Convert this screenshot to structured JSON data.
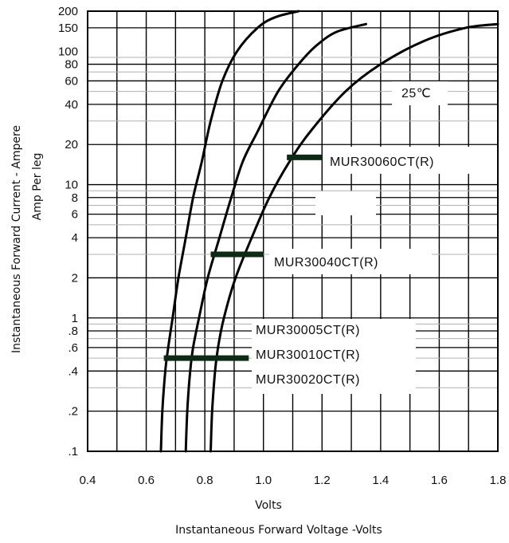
{
  "chart_data": {
    "type": "line",
    "scale": {
      "x": "linear",
      "y": "log"
    },
    "xlim": [
      0.4,
      1.8
    ],
    "ylim": [
      0.1,
      200
    ],
    "grid": true,
    "x_ticks": [
      "0.4",
      "0.6",
      "0.8",
      "1.0",
      "1.2",
      "1.4",
      "1.6",
      "1.8"
    ],
    "y_ticks": [
      {
        "value": 200,
        "label": "200"
      },
      {
        "value": 150,
        "label": "150"
      },
      {
        "value": 100,
        "label": "100"
      },
      {
        "value": 80,
        "label": "80"
      },
      {
        "value": 60,
        "label": "60"
      },
      {
        "value": 40,
        "label": "40"
      },
      {
        "value": 20,
        "label": "20"
      },
      {
        "value": 10,
        "label": "10"
      },
      {
        "value": 8,
        "label": "8"
      },
      {
        "value": 6,
        "label": "6"
      },
      {
        "value": 4,
        "label": "4"
      },
      {
        "value": 2,
        "label": "2"
      },
      {
        "value": 1,
        "label": "1"
      },
      {
        "value": 0.8,
        "label": ".8"
      },
      {
        "value": 0.6,
        "label": ".6"
      },
      {
        "value": 0.4,
        "label": ".4"
      },
      {
        "value": 0.2,
        "label": ".2"
      },
      {
        "value": 0.1,
        "label": ".1"
      }
    ],
    "xlabel_line1": "Volts",
    "xlabel_line2": "Instantaneous Forward Voltage -Volts",
    "ylabel_line1": "Instantaneous Forward Current - Ampere",
    "ylabel_line2": "Amp Per leg",
    "temperature_label": "25℃",
    "series": [
      {
        "label": "MUR30005CT(R) MUR30010CT(R) MUR30020CT(R)",
        "points": [
          [
            0.65,
            0.1
          ],
          [
            0.655,
            0.2
          ],
          [
            0.665,
            0.4
          ],
          [
            0.675,
            0.6
          ],
          [
            0.69,
            1
          ],
          [
            0.71,
            2
          ],
          [
            0.735,
            4
          ],
          [
            0.76,
            8
          ],
          [
            0.79,
            15
          ],
          [
            0.82,
            30
          ],
          [
            0.86,
            60
          ],
          [
            0.91,
            100
          ],
          [
            0.98,
            150
          ],
          [
            1.04,
            180
          ],
          [
            1.12,
            200
          ]
        ]
      },
      {
        "label": "MUR30040CT(R)",
        "points": [
          [
            0.735,
            0.1
          ],
          [
            0.74,
            0.2
          ],
          [
            0.75,
            0.4
          ],
          [
            0.76,
            0.6
          ],
          [
            0.78,
            1
          ],
          [
            0.81,
            2
          ],
          [
            0.85,
            4
          ],
          [
            0.89,
            8
          ],
          [
            0.93,
            15
          ],
          [
            0.98,
            25
          ],
          [
            1.05,
            50
          ],
          [
            1.12,
            80
          ],
          [
            1.18,
            110
          ],
          [
            1.25,
            140
          ],
          [
            1.35,
            160
          ]
        ]
      },
      {
        "label": "MUR30060CT(R)",
        "points": [
          [
            0.82,
            0.1
          ],
          [
            0.825,
            0.2
          ],
          [
            0.835,
            0.4
          ],
          [
            0.845,
            0.6
          ],
          [
            0.865,
            1
          ],
          [
            0.905,
            2
          ],
          [
            0.96,
            4
          ],
          [
            1.02,
            8
          ],
          [
            1.09,
            15
          ],
          [
            1.16,
            25
          ],
          [
            1.28,
            50
          ],
          [
            1.4,
            80
          ],
          [
            1.55,
            120
          ],
          [
            1.69,
            150
          ],
          [
            1.8,
            160
          ]
        ]
      }
    ],
    "annotations": [
      {
        "text": "MUR30060CT(R)",
        "marker_x": [
          1.08,
          1.2
        ],
        "marker_y": 16
      },
      {
        "text": "MUR30040CT(R)",
        "marker_x": [
          0.82,
          1.0
        ],
        "marker_y": 3
      },
      {
        "text": "MUR30005CT(R)"
      },
      {
        "text": "MUR30010CT(R)",
        "marker_x": [
          0.66,
          0.95
        ],
        "marker_y": 0.5
      },
      {
        "text": "MUR30020CT(R)"
      }
    ]
  }
}
